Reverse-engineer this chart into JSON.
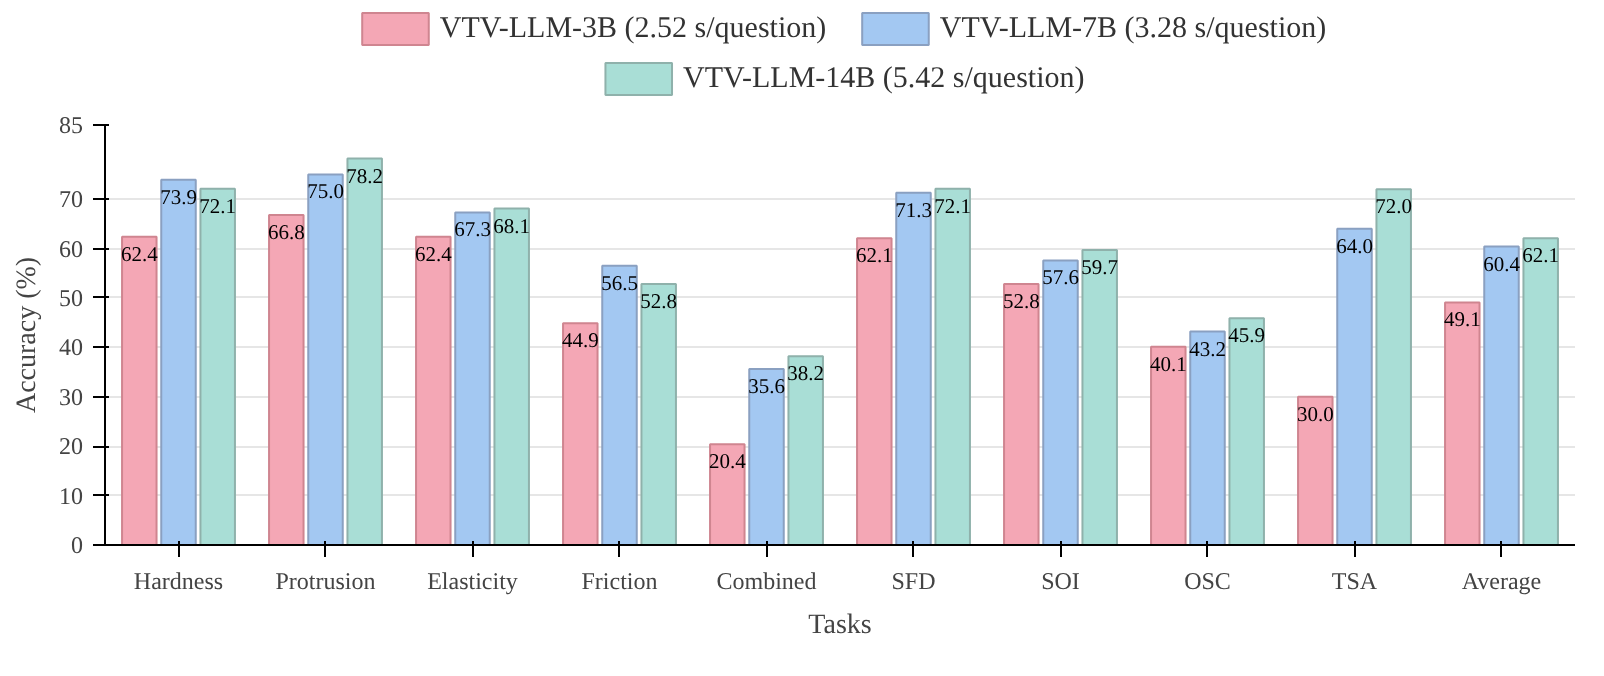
{
  "chart_data": {
    "type": "bar",
    "xlabel": "Tasks",
    "ylabel": "Accuracy (%)",
    "categories": [
      "Hardness",
      "Protrusion",
      "Elasticity",
      "Friction",
      "Combined",
      "SFD",
      "SOI",
      "OSC",
      "TSA",
      "Average"
    ],
    "series": [
      {
        "name": "VTV-LLM-3B (2.52 s/question)",
        "color": "#f4a7b5",
        "values": [
          62.4,
          66.8,
          62.4,
          44.9,
          20.4,
          62.1,
          52.8,
          40.1,
          30.0,
          49.1
        ],
        "value_labels": [
          "62.4",
          "66.8",
          "62.4",
          "44.9",
          "20.4",
          "62.1",
          "52.8",
          "40.1",
          "30.0",
          "49.1"
        ]
      },
      {
        "name": "VTV-LLM-7B (3.28 s/question)",
        "color": "#a3c8f2",
        "values": [
          73.9,
          75.0,
          67.3,
          56.5,
          35.6,
          71.3,
          57.6,
          43.2,
          64.0,
          60.4
        ],
        "value_labels": [
          "73.9",
          "75.0",
          "67.3",
          "56.5",
          "35.6",
          "71.3",
          "57.6",
          "43.2",
          "64.0",
          "60.4"
        ]
      },
      {
        "name": "VTV-LLM-14B (5.42 s/question)",
        "color": "#a9ded6",
        "values": [
          72.1,
          78.2,
          68.1,
          52.8,
          38.2,
          72.1,
          59.7,
          45.9,
          72.0,
          62.1
        ],
        "value_labels": [
          "72.1",
          "78.2",
          "68.1",
          "52.8",
          "38.2",
          "72.1",
          "59.7",
          "45.9",
          "72.0",
          "62.1"
        ]
      }
    ],
    "ylim": [
      0,
      85
    ],
    "yticks": [
      0,
      10,
      20,
      30,
      40,
      50,
      60,
      70,
      85
    ],
    "grid": "y",
    "legend": "top"
  }
}
